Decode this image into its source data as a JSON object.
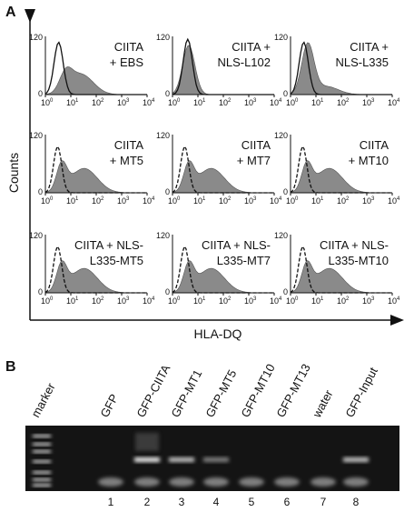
{
  "panel_a": {
    "label": "A",
    "y_axis_label": "Counts",
    "x_axis_label": "HLA-DQ",
    "y_ticks": [
      "0",
      "120"
    ],
    "x_tick_base": "10",
    "x_tick_exponents": [
      "0",
      "1",
      "2",
      "3",
      "4"
    ],
    "panels": [
      {
        "lines": [
          "CIITA",
          "+ EBS"
        ]
      },
      {
        "lines": [
          "CIITA +",
          "NLS-L102"
        ]
      },
      {
        "lines": [
          "CIITA +",
          "NLS-L335"
        ]
      },
      {
        "lines": [
          "CIITA",
          "+ MT5"
        ]
      },
      {
        "lines": [
          "CIITA",
          "+ MT7"
        ]
      },
      {
        "lines": [
          "CIITA",
          "+ MT10"
        ]
      },
      {
        "lines": [
          "CIITA + NLS-",
          "L335-MT5"
        ]
      },
      {
        "lines": [
          "CIITA + NLS-",
          "L335-MT7"
        ]
      },
      {
        "lines": [
          "CIITA + NLS-",
          "L335-MT10"
        ]
      }
    ]
  },
  "panel_b": {
    "label": "B",
    "lanes": [
      "marker",
      "GFP",
      "GFP-CIITA",
      "GFP-MT1",
      "GFP-MT5",
      "GFP-MT10",
      "GFP-MT13",
      "water",
      "GFP-Input"
    ],
    "lane_numbers": [
      "1",
      "2",
      "3",
      "4",
      "5",
      "6",
      "7",
      "8"
    ]
  }
}
